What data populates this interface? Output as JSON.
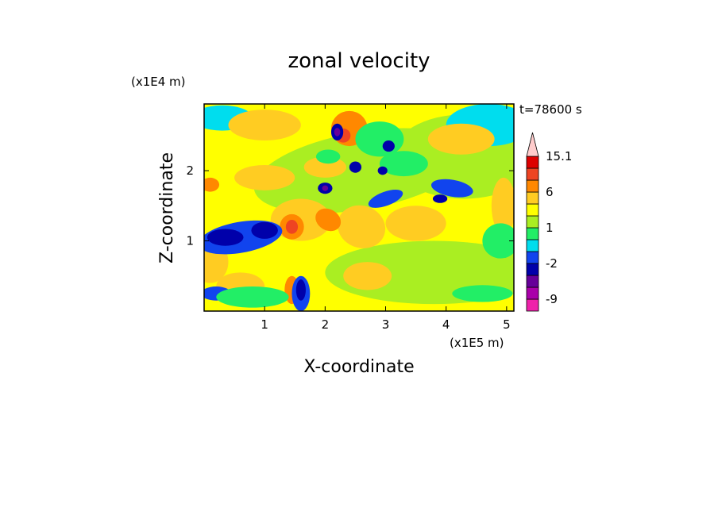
{
  "chart_data": {
    "type": "heatmap",
    "title": "zonal velocity",
    "xlabel": "X-coordinate",
    "ylabel": "Z-coordinate",
    "x_unit": "(x1E5 m)",
    "y_unit": "(x1E4 m)",
    "time_label": "t=78600 s",
    "x_ticks": [
      1,
      2,
      3,
      4,
      5
    ],
    "y_ticks": [
      1,
      2
    ],
    "xlim": [
      0,
      5.12
    ],
    "ylim": [
      0,
      2.95
    ],
    "colorbar": {
      "labels": [
        "15.1",
        "6",
        "1",
        "-2",
        "-9"
      ],
      "levels": [
        -12,
        -9,
        -6,
        -4,
        -2,
        -1,
        0,
        1,
        2,
        4,
        6,
        9,
        12,
        15.1
      ],
      "colors": [
        "#ee22aa",
        "#aa00aa",
        "#660099",
        "#0000aa",
        "#1144ee",
        "#00ddee",
        "#22ee66",
        "#aaee22",
        "#ffff00",
        "#ffcc22",
        "#ff8800",
        "#ee4422",
        "#dd0000",
        "#ff8888",
        "#ffcccc"
      ]
    }
  }
}
